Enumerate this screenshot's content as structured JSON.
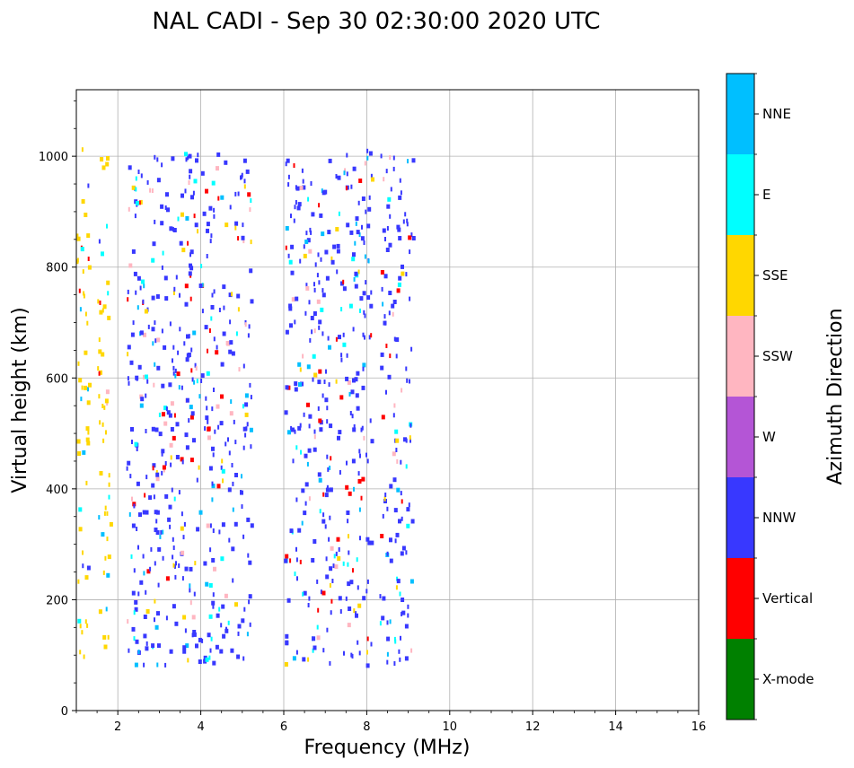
{
  "chart_data": {
    "type": "scatter",
    "title": "NAL CADI - Sep 30 02:30:00 2020 UTC",
    "xlabel": "Frequency (MHz)",
    "ylabel": "Virtual height (km)",
    "xlim": [
      1,
      16
    ],
    "ylim": [
      0,
      1120
    ],
    "x_ticks": [
      2,
      4,
      6,
      8,
      10,
      12,
      14,
      16
    ],
    "y_ticks": [
      0,
      200,
      400,
      600,
      800,
      1000
    ],
    "grid": true,
    "colorbar": {
      "title": "Azimuth Direction",
      "categories": [
        "X-mode",
        "Vertical",
        "NNW",
        "W",
        "SSW",
        "SSE",
        "E",
        "NNE"
      ],
      "colors": [
        "#008000",
        "#ff0000",
        "#3838ff",
        "#b455d6",
        "#ffb6c1",
        "#ffd700",
        "#00ffff",
        "#00bfff"
      ]
    },
    "series_summary": {
      "height_range_km": [
        85,
        1020
      ],
      "bands": [
        {
          "x_range": [
            1.0,
            1.3
          ],
          "dominant": "SSE"
        },
        {
          "x_range": [
            1.5,
            1.8
          ],
          "dominant": "SSE"
        },
        {
          "x_range": [
            2.2,
            5.2
          ],
          "dominant": "NNW"
        },
        {
          "x_range": [
            6.0,
            7.0
          ],
          "dominant": "NNW"
        },
        {
          "x_range": [
            7.0,
            8.1
          ],
          "dominant": "NNW"
        },
        {
          "x_range": [
            8.3,
            9.1
          ],
          "dominant": "NNW"
        }
      ]
    }
  }
}
